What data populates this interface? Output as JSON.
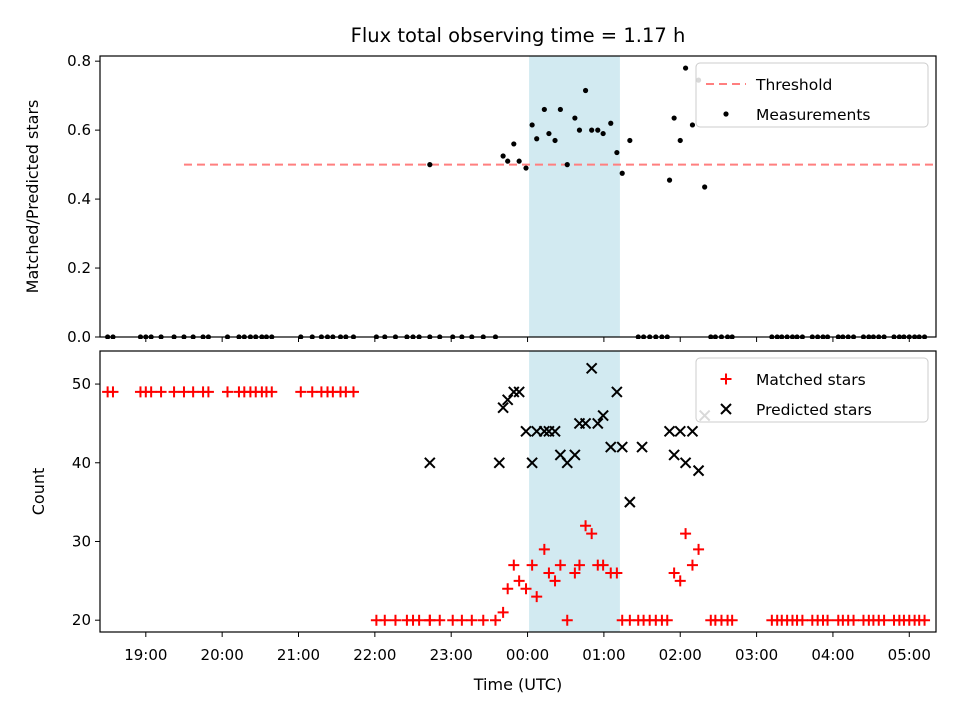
{
  "chart_data": {
    "title": "Flux total observing time = 1.17 h",
    "xlabel": "Time (UTC)",
    "xlim": [
      -0.6,
      10.35
    ],
    "x_unit": "hours after 19:00 UTC",
    "x_ticks": [
      {
        "v": 0,
        "label": "19:00"
      },
      {
        "v": 1,
        "label": "20:00"
      },
      {
        "v": 2,
        "label": "21:00"
      },
      {
        "v": 3,
        "label": "22:00"
      },
      {
        "v": 4,
        "label": "23:00"
      },
      {
        "v": 5,
        "label": "00:00"
      },
      {
        "v": 6,
        "label": "01:00"
      },
      {
        "v": 7,
        "label": "02:00"
      },
      {
        "v": 8,
        "label": "03:00"
      },
      {
        "v": 9,
        "label": "04:00"
      },
      {
        "v": 10,
        "label": "05:00"
      }
    ],
    "highlight_span": [
      5.02,
      6.21
    ],
    "highlight_color": "#add8e6",
    "panels": [
      {
        "type": "scatter",
        "ylabel": "Matched/Predicted stars",
        "ylim": [
          0,
          0.815
        ],
        "y_ticks": [
          {
            "v": 0,
            "label": "0.0"
          },
          {
            "v": 0.2,
            "label": "0.2"
          },
          {
            "v": 0.4,
            "label": "0.4"
          },
          {
            "v": 0.6,
            "label": "0.6"
          },
          {
            "v": 0.8,
            "label": "0.8"
          }
        ],
        "legend": {
          "position": "top-right",
          "entries": [
            "Threshold",
            "Measurements"
          ]
        },
        "threshold": {
          "name": "Threshold",
          "value": 0.5,
          "x": [
            0.5,
            10.5
          ],
          "color": "#ff7f7f"
        },
        "measurements": {
          "name": "Measurements",
          "color": "#000000",
          "points": [
            [
              -0.5,
              0
            ],
            [
              -0.43,
              0
            ],
            [
              -0.07,
              0
            ],
            [
              0.0,
              0
            ],
            [
              0.07,
              0
            ],
            [
              0.2,
              0
            ],
            [
              0.37,
              0
            ],
            [
              0.5,
              0
            ],
            [
              0.62,
              0
            ],
            [
              0.75,
              0
            ],
            [
              0.82,
              0
            ],
            [
              1.07,
              0
            ],
            [
              1.22,
              0
            ],
            [
              1.29,
              0
            ],
            [
              1.37,
              0
            ],
            [
              1.44,
              0
            ],
            [
              1.52,
              0
            ],
            [
              1.58,
              0
            ],
            [
              1.65,
              0
            ],
            [
              2.03,
              0
            ],
            [
              2.18,
              0
            ],
            [
              2.3,
              0
            ],
            [
              2.38,
              0
            ],
            [
              2.45,
              0
            ],
            [
              2.55,
              0
            ],
            [
              2.62,
              0
            ],
            [
              2.72,
              0
            ],
            [
              3.02,
              0
            ],
            [
              3.13,
              0
            ],
            [
              3.27,
              0
            ],
            [
              3.42,
              0
            ],
            [
              3.5,
              0
            ],
            [
              3.58,
              0
            ],
            [
              3.72,
              0
            ],
            [
              3.85,
              0
            ],
            [
              4.02,
              0
            ],
            [
              4.14,
              0
            ],
            [
              4.27,
              0
            ],
            [
              4.42,
              0
            ],
            [
              4.58,
              0
            ],
            [
              3.72,
              0.5
            ],
            [
              4.68,
              0.525
            ],
            [
              4.74,
              0.51
            ],
            [
              4.82,
              0.56
            ],
            [
              4.89,
              0.51
            ],
            [
              4.98,
              0.49
            ],
            [
              5.06,
              0.615
            ],
            [
              5.12,
              0.575
            ],
            [
              5.22,
              0.66
            ],
            [
              5.28,
              0.59
            ],
            [
              5.36,
              0.57
            ],
            [
              5.43,
              0.66
            ],
            [
              5.52,
              0.5
            ],
            [
              5.62,
              0.635
            ],
            [
              5.68,
              0.6
            ],
            [
              5.76,
              0.715
            ],
            [
              5.84,
              0.6
            ],
            [
              5.92,
              0.6
            ],
            [
              5.99,
              0.59
            ],
            [
              6.09,
              0.62
            ],
            [
              6.17,
              0.535
            ],
            [
              6.24,
              0.475
            ],
            [
              6.34,
              0.57
            ],
            [
              6.45,
              0
            ],
            [
              6.52,
              0
            ],
            [
              6.6,
              0
            ],
            [
              6.68,
              0
            ],
            [
              6.76,
              0
            ],
            [
              6.83,
              0
            ],
            [
              6.86,
              0.455
            ],
            [
              6.92,
              0.635
            ],
            [
              7.0,
              0.57
            ],
            [
              7.07,
              0.78
            ],
            [
              7.16,
              0.615
            ],
            [
              7.24,
              0.745
            ],
            [
              7.32,
              0.435
            ],
            [
              7.4,
              0
            ],
            [
              7.46,
              0
            ],
            [
              7.54,
              0
            ],
            [
              7.62,
              0
            ],
            [
              7.68,
              0
            ],
            [
              8.2,
              0
            ],
            [
              8.27,
              0
            ],
            [
              8.33,
              0
            ],
            [
              8.4,
              0
            ],
            [
              8.47,
              0
            ],
            [
              8.53,
              0
            ],
            [
              8.6,
              0
            ],
            [
              8.73,
              0
            ],
            [
              8.8,
              0
            ],
            [
              8.87,
              0
            ],
            [
              8.93,
              0
            ],
            [
              9.07,
              0
            ],
            [
              9.13,
              0
            ],
            [
              9.2,
              0
            ],
            [
              9.27,
              0
            ],
            [
              9.4,
              0
            ],
            [
              9.47,
              0
            ],
            [
              9.53,
              0
            ],
            [
              9.6,
              0
            ],
            [
              9.67,
              0
            ],
            [
              9.8,
              0
            ],
            [
              9.87,
              0
            ],
            [
              9.93,
              0
            ],
            [
              10.0,
              0
            ],
            [
              10.07,
              0
            ],
            [
              10.13,
              0
            ],
            [
              10.2,
              0
            ]
          ]
        }
      },
      {
        "type": "scatter",
        "ylabel": "Count",
        "ylim": [
          18.5,
          54.2
        ],
        "y_ticks": [
          {
            "v": 20,
            "label": "20"
          },
          {
            "v": 30,
            "label": "30"
          },
          {
            "v": 40,
            "label": "40"
          },
          {
            "v": 50,
            "label": "50"
          }
        ],
        "legend": {
          "position": "top-right",
          "entries": [
            "Matched stars",
            "Predicted stars"
          ]
        },
        "matched": {
          "name": "Matched stars",
          "color": "#ff0000",
          "marker": "+",
          "points": [
            [
              -0.5,
              49
            ],
            [
              -0.43,
              49
            ],
            [
              -0.07,
              49
            ],
            [
              0.0,
              49
            ],
            [
              0.07,
              49
            ],
            [
              0.2,
              49
            ],
            [
              0.37,
              49
            ],
            [
              0.5,
              49
            ],
            [
              0.62,
              49
            ],
            [
              0.75,
              49
            ],
            [
              0.82,
              49
            ],
            [
              1.07,
              49
            ],
            [
              1.22,
              49
            ],
            [
              1.29,
              49
            ],
            [
              1.37,
              49
            ],
            [
              1.44,
              49
            ],
            [
              1.52,
              49
            ],
            [
              1.58,
              49
            ],
            [
              1.65,
              49
            ],
            [
              2.03,
              49
            ],
            [
              2.18,
              49
            ],
            [
              2.3,
              49
            ],
            [
              2.38,
              49
            ],
            [
              2.45,
              49
            ],
            [
              2.55,
              49
            ],
            [
              2.62,
              49
            ],
            [
              2.72,
              49
            ],
            [
              3.02,
              20
            ],
            [
              3.13,
              20
            ],
            [
              3.27,
              20
            ],
            [
              3.42,
              20
            ],
            [
              3.5,
              20
            ],
            [
              3.58,
              20
            ],
            [
              3.72,
              20
            ],
            [
              3.85,
              20
            ],
            [
              4.02,
              20
            ],
            [
              4.14,
              20
            ],
            [
              4.27,
              20
            ],
            [
              4.42,
              20
            ],
            [
              4.58,
              20
            ],
            [
              3.72,
              20
            ],
            [
              4.68,
              21
            ],
            [
              4.74,
              24
            ],
            [
              4.82,
              27
            ],
            [
              4.89,
              25
            ],
            [
              4.98,
              24
            ],
            [
              5.06,
              27
            ],
            [
              5.12,
              23
            ],
            [
              5.22,
              29
            ],
            [
              5.28,
              26
            ],
            [
              5.36,
              25
            ],
            [
              5.43,
              27
            ],
            [
              5.52,
              20
            ],
            [
              5.62,
              26
            ],
            [
              5.68,
              27
            ],
            [
              5.76,
              32
            ],
            [
              5.84,
              31
            ],
            [
              5.92,
              27
            ],
            [
              5.99,
              27
            ],
            [
              6.09,
              26
            ],
            [
              6.17,
              26
            ],
            [
              6.24,
              20
            ],
            [
              6.34,
              20
            ],
            [
              6.45,
              20
            ],
            [
              6.52,
              20
            ],
            [
              6.6,
              20
            ],
            [
              6.68,
              20
            ],
            [
              6.76,
              20
            ],
            [
              6.83,
              20
            ],
            [
              6.92,
              26
            ],
            [
              7.0,
              25
            ],
            [
              7.07,
              31
            ],
            [
              7.16,
              27
            ],
            [
              7.24,
              29
            ],
            [
              7.4,
              20
            ],
            [
              7.46,
              20
            ],
            [
              7.54,
              20
            ],
            [
              7.62,
              20
            ],
            [
              7.68,
              20
            ],
            [
              8.2,
              20
            ],
            [
              8.27,
              20
            ],
            [
              8.33,
              20
            ],
            [
              8.4,
              20
            ],
            [
              8.47,
              20
            ],
            [
              8.53,
              20
            ],
            [
              8.6,
              20
            ],
            [
              8.73,
              20
            ],
            [
              8.8,
              20
            ],
            [
              8.87,
              20
            ],
            [
              8.93,
              20
            ],
            [
              9.07,
              20
            ],
            [
              9.13,
              20
            ],
            [
              9.2,
              20
            ],
            [
              9.27,
              20
            ],
            [
              9.4,
              20
            ],
            [
              9.47,
              20
            ],
            [
              9.53,
              20
            ],
            [
              9.6,
              20
            ],
            [
              9.67,
              20
            ],
            [
              9.8,
              20
            ],
            [
              9.87,
              20
            ],
            [
              9.93,
              20
            ],
            [
              10.0,
              20
            ],
            [
              10.07,
              20
            ],
            [
              10.13,
              20
            ],
            [
              10.2,
              20
            ]
          ]
        },
        "predicted": {
          "name": "Predicted stars",
          "color": "#000000",
          "marker": "x",
          "points": [
            [
              3.72,
              40
            ],
            [
              4.63,
              40
            ],
            [
              4.68,
              47
            ],
            [
              4.74,
              48
            ],
            [
              4.82,
              49
            ],
            [
              4.89,
              49
            ],
            [
              4.98,
              44
            ],
            [
              5.06,
              40
            ],
            [
              5.12,
              44
            ],
            [
              5.22,
              44
            ],
            [
              5.28,
              44
            ],
            [
              5.36,
              44
            ],
            [
              5.43,
              41
            ],
            [
              5.52,
              40
            ],
            [
              5.62,
              41
            ],
            [
              5.68,
              45
            ],
            [
              5.76,
              45
            ],
            [
              5.84,
              52
            ],
            [
              5.92,
              45
            ],
            [
              5.99,
              46
            ],
            [
              6.09,
              42
            ],
            [
              6.17,
              49
            ],
            [
              6.24,
              42
            ],
            [
              6.34,
              35
            ],
            [
              6.5,
              42
            ],
            [
              6.86,
              44
            ],
            [
              6.92,
              41
            ],
            [
              7.0,
              44
            ],
            [
              7.07,
              40
            ],
            [
              7.16,
              44
            ],
            [
              7.24,
              39
            ],
            [
              7.32,
              46
            ]
          ]
        }
      }
    ]
  }
}
